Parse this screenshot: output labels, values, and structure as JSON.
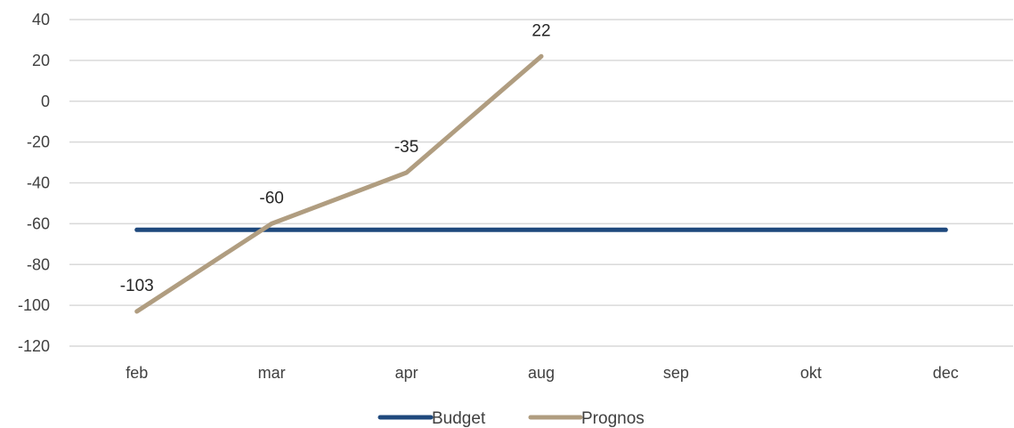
{
  "chart_data": {
    "type": "line",
    "categories": [
      "feb",
      "mar",
      "apr",
      "aug",
      "sep",
      "okt",
      "dec"
    ],
    "ylim": [
      -120,
      40
    ],
    "yticks": [
      40,
      20,
      0,
      -20,
      -40,
      -60,
      -80,
      -100,
      -120
    ],
    "grid": true,
    "legend_position": "bottom",
    "series": [
      {
        "name": "Budget",
        "color": "#1f497d",
        "values": [
          -63,
          -63,
          -63,
          -63,
          -63,
          -63,
          -63
        ],
        "data_labels": false
      },
      {
        "name": "Prognos",
        "color": "#b09d80",
        "values": [
          -103,
          -60,
          -35,
          22,
          null,
          null,
          null
        ],
        "data_labels": true
      }
    ]
  }
}
